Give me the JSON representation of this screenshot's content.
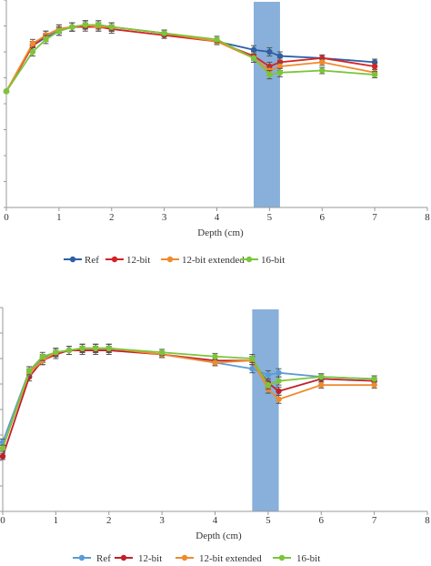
{
  "chart_data": [
    {
      "type": "line",
      "xlabel": "Depth (cm)",
      "ylabel": "",
      "xlim": [
        0,
        8
      ],
      "ylim": [
        0,
        1
      ],
      "x_ticks": [
        "0",
        "1",
        "2",
        "3",
        "4",
        "5",
        "6",
        "7",
        "8"
      ],
      "grid": false,
      "legend_position": "bottom",
      "shaded_region": {
        "x_start": 4.7,
        "x_end": 5.2,
        "color": "#7ba7d6"
      },
      "series": [
        {
          "name": "Ref",
          "color": "#2e5fa8",
          "x": [
            0,
            0.5,
            0.75,
            1,
            1.25,
            1.5,
            1.75,
            2,
            3,
            4,
            4.7,
            5,
            5.2,
            6,
            7
          ],
          "y": [
            0.56,
            0.78,
            0.82,
            0.85,
            0.87,
            0.88,
            0.88,
            0.87,
            0.84,
            0.8,
            0.76,
            0.75,
            0.73,
            0.72,
            0.7
          ],
          "err": [
            0.005,
            0.02,
            0.02,
            0.02,
            0.02,
            0.02,
            0.02,
            0.02,
            0.015,
            0.015,
            0.02,
            0.02,
            0.02,
            0.015,
            0.015
          ]
        },
        {
          "name": "12-bit",
          "color": "#d42424",
          "x": [
            0,
            0.5,
            0.75,
            1,
            1.25,
            1.5,
            1.75,
            2,
            3,
            4,
            4.7,
            5,
            5.2,
            6,
            7
          ],
          "y": [
            0.56,
            0.78,
            0.83,
            0.86,
            0.87,
            0.87,
            0.87,
            0.86,
            0.83,
            0.8,
            0.73,
            0.68,
            0.7,
            0.72,
            0.68
          ],
          "err": [
            0.005,
            0.02,
            0.02,
            0.02,
            0.02,
            0.02,
            0.02,
            0.02,
            0.015,
            0.015,
            0.02,
            0.02,
            0.02,
            0.015,
            0.015
          ]
        },
        {
          "name": "12-bit extended",
          "color": "#ef8a2e",
          "x": [
            0,
            0.5,
            0.75,
            1,
            1.25,
            1.5,
            1.75,
            2,
            3,
            4,
            4.7,
            5,
            5.2,
            6,
            7
          ],
          "y": [
            0.56,
            0.79,
            0.83,
            0.86,
            0.87,
            0.88,
            0.87,
            0.87,
            0.84,
            0.8,
            0.72,
            0.66,
            0.68,
            0.7,
            0.65
          ],
          "err": [
            0.005,
            0.02,
            0.02,
            0.02,
            0.02,
            0.02,
            0.02,
            0.02,
            0.015,
            0.015,
            0.02,
            0.02,
            0.02,
            0.015,
            0.015
          ]
        },
        {
          "name": "16-bit",
          "color": "#7cc53a",
          "x": [
            0,
            0.5,
            0.75,
            1,
            1.25,
            1.5,
            1.75,
            2,
            3,
            4,
            4.7,
            5,
            5.2,
            6,
            7
          ],
          "y": [
            0.56,
            0.75,
            0.81,
            0.85,
            0.87,
            0.88,
            0.88,
            0.87,
            0.84,
            0.81,
            0.72,
            0.64,
            0.65,
            0.66,
            0.64
          ],
          "err": [
            0.005,
            0.02,
            0.02,
            0.02,
            0.02,
            0.02,
            0.02,
            0.02,
            0.015,
            0.015,
            0.02,
            0.02,
            0.02,
            0.015,
            0.015
          ]
        }
      ]
    },
    {
      "type": "line",
      "xlabel": "Depth (cm)",
      "ylabel": "",
      "xlim": [
        0,
        8
      ],
      "ylim": [
        0,
        1
      ],
      "x_ticks": [
        "0",
        "1",
        "2",
        "3",
        "4",
        "5",
        "6",
        "7",
        "8"
      ],
      "grid": false,
      "legend_position": "bottom",
      "shaded_region": {
        "x_start": 4.7,
        "x_end": 5.2,
        "color": "#7ba7d6"
      },
      "series": [
        {
          "name": "Ref",
          "color": "#5b9bd5",
          "x": [
            0,
            0.5,
            0.75,
            1,
            1.25,
            1.5,
            1.75,
            2,
            3,
            4,
            4.7,
            5,
            5.2,
            6,
            7
          ],
          "y": [
            0.34,
            0.69,
            0.75,
            0.78,
            0.79,
            0.8,
            0.8,
            0.8,
            0.77,
            0.73,
            0.7,
            0.67,
            0.68,
            0.66,
            0.65
          ],
          "err": [
            0.015,
            0.02,
            0.02,
            0.02,
            0.02,
            0.02,
            0.02,
            0.02,
            0.015,
            0.015,
            0.02,
            0.02,
            0.02,
            0.015,
            0.015
          ]
        },
        {
          "name": "12-bit",
          "color": "#c0202a",
          "x": [
            0,
            0.5,
            0.75,
            1,
            1.25,
            1.5,
            1.75,
            2,
            3,
            4,
            4.7,
            5,
            5.2,
            6,
            7
          ],
          "y": [
            0.27,
            0.66,
            0.74,
            0.77,
            0.79,
            0.79,
            0.79,
            0.79,
            0.77,
            0.74,
            0.74,
            0.63,
            0.59,
            0.65,
            0.64
          ],
          "err": [
            0.015,
            0.02,
            0.02,
            0.02,
            0.02,
            0.02,
            0.02,
            0.02,
            0.015,
            0.015,
            0.02,
            0.02,
            0.02,
            0.015,
            0.015
          ]
        },
        {
          "name": "12-bit extended",
          "color": "#ef8a2e",
          "x": [
            0,
            0.5,
            0.75,
            1,
            1.25,
            1.5,
            1.75,
            2,
            3,
            4,
            4.7,
            5,
            5.2,
            6,
            7
          ],
          "y": [
            0.31,
            0.68,
            0.74,
            0.78,
            0.79,
            0.8,
            0.8,
            0.8,
            0.77,
            0.73,
            0.74,
            0.6,
            0.55,
            0.62,
            0.62
          ],
          "err": [
            0.015,
            0.02,
            0.02,
            0.02,
            0.02,
            0.02,
            0.02,
            0.02,
            0.015,
            0.015,
            0.02,
            0.02,
            0.02,
            0.015,
            0.015
          ]
        },
        {
          "name": "16-bit",
          "color": "#7cc53a",
          "x": [
            0,
            0.5,
            0.75,
            1,
            1.25,
            1.5,
            1.75,
            2,
            3,
            4,
            4.7,
            5,
            5.2,
            6,
            7
          ],
          "y": [
            0.31,
            0.69,
            0.76,
            0.78,
            0.79,
            0.8,
            0.8,
            0.8,
            0.78,
            0.76,
            0.75,
            0.62,
            0.64,
            0.66,
            0.65
          ],
          "err": [
            0.015,
            0.02,
            0.02,
            0.02,
            0.02,
            0.02,
            0.02,
            0.02,
            0.015,
            0.015,
            0.02,
            0.02,
            0.02,
            0.015,
            0.015
          ]
        }
      ]
    }
  ]
}
